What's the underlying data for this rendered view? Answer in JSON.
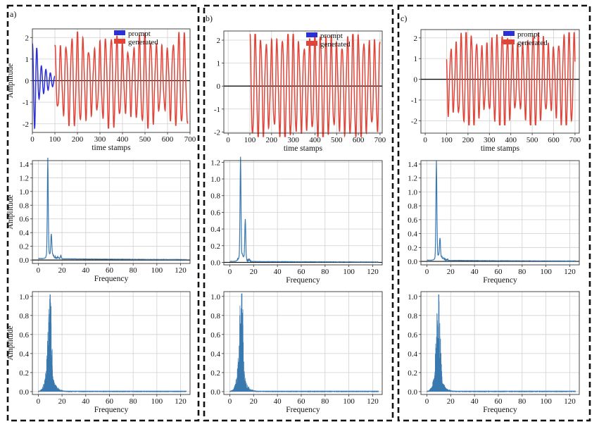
{
  "panels": [
    {
      "label": "a)"
    },
    {
      "label": "b)"
    },
    {
      "label": "c)"
    }
  ],
  "colors": {
    "prompt": "#2a2fd6",
    "generated": "#e0453a",
    "spectrum": "#3a78b0",
    "zero_line": "#111111",
    "grid": "#d0d0d0"
  },
  "chart_data": [
    {
      "panel": "a)",
      "type": "line",
      "row": 1,
      "xlabel": "time stamps",
      "ylabel": "Amplitude",
      "xlim": [
        0,
        700
      ],
      "ylim": [
        -2.4,
        2.4
      ],
      "xticks": [
        0,
        100,
        200,
        300,
        400,
        500,
        600,
        700
      ],
      "yticks": [
        -2,
        -1,
        0,
        1,
        2
      ],
      "grid": true,
      "legend": "top-right",
      "series": [
        {
          "name": "prompt",
          "x_range": [
            0,
            100
          ],
          "amplitude": [
            1.0,
            2.3,
            0.2
          ],
          "dominant_period": 20
        },
        {
          "name": "generated",
          "x_range": [
            100,
            690
          ],
          "amplitude": [
            1.4,
            2.1
          ],
          "dominant_period": 25
        }
      ]
    },
    {
      "panel": "a)",
      "type": "line",
      "row": 2,
      "xlabel": "Frequency",
      "ylabel": "Amplitude",
      "xlim": [
        -5,
        128
      ],
      "ylim": [
        -0.05,
        1.45
      ],
      "xticks": [
        0,
        20,
        40,
        60,
        80,
        100,
        120
      ],
      "yticks": [
        0.0,
        0.2,
        0.4,
        0.6,
        0.8,
        1.0,
        1.2,
        1.4
      ],
      "grid": true,
      "series": [
        {
          "peaks": [
            [
              8,
              1.4
            ],
            [
              11,
              0.3
            ],
            [
              19,
              0.05
            ]
          ],
          "baseline": 0.02
        }
      ]
    },
    {
      "panel": "a)",
      "type": "area",
      "row": 3,
      "xlabel": "Frequency",
      "ylabel": "Amplitude",
      "xlim": [
        -5,
        128
      ],
      "ylim": [
        -0.03,
        1.05
      ],
      "xticks": [
        0,
        20,
        40,
        60,
        80,
        100,
        120
      ],
      "yticks": [
        0.0,
        0.2,
        0.4,
        0.6,
        0.8,
        1.0
      ],
      "grid": true,
      "series": [
        {
          "peak": [
            10,
            1.02
          ],
          "baseline": 0.005
        }
      ]
    },
    {
      "panel": "b)",
      "type": "line",
      "row": 1,
      "xlabel": "time stamps",
      "ylabel": "",
      "xlim": [
        -20,
        710
      ],
      "ylim": [
        -2.05,
        2.4
      ],
      "xticks": [
        0,
        100,
        200,
        300,
        400,
        500,
        600,
        700
      ],
      "yticks": [
        -2,
        -1,
        0,
        1,
        2
      ],
      "grid": true,
      "legend": "top-right",
      "series": [
        {
          "name": "prompt",
          "x_range": [
            0,
            100
          ],
          "amplitude": [
            0.8,
            0.6
          ],
          "dominant_period": 20
        },
        {
          "name": "generated",
          "x_range": [
            100,
            700
          ],
          "amplitude": [
            1.8,
            2.3
          ],
          "dominant_period": 25
        }
      ]
    },
    {
      "panel": "b)",
      "type": "line",
      "row": 2,
      "xlabel": "Frequency",
      "ylabel": "",
      "xlim": [
        -5,
        128
      ],
      "ylim": [
        -0.03,
        1.22
      ],
      "xticks": [
        0,
        20,
        40,
        60,
        80,
        100,
        120
      ],
      "yticks": [
        0.0,
        0.2,
        0.4,
        0.6,
        0.8,
        1.0,
        1.2
      ],
      "grid": true,
      "series": [
        {
          "peaks": [
            [
              9,
              1.17
            ],
            [
              13,
              0.47
            ]
          ],
          "baseline": 0.01
        }
      ]
    },
    {
      "panel": "b)",
      "type": "area",
      "row": 3,
      "xlabel": "Frequency",
      "ylabel": "",
      "xlim": [
        -5,
        128
      ],
      "ylim": [
        -0.03,
        1.05
      ],
      "xticks": [
        0,
        20,
        40,
        60,
        80,
        100,
        120
      ],
      "yticks": [
        0.0,
        0.2,
        0.4,
        0.6,
        0.8,
        1.0
      ],
      "grid": true,
      "series": [
        {
          "peak": [
            10,
            1.03
          ],
          "baseline": 0.005
        }
      ]
    },
    {
      "panel": "c)",
      "type": "line",
      "row": 1,
      "xlabel": "time stamps",
      "ylabel": "",
      "xlim": [
        -20,
        720
      ],
      "ylim": [
        -2.6,
        2.4
      ],
      "xticks": [
        0,
        100,
        200,
        300,
        400,
        500,
        600,
        700
      ],
      "yticks": [
        -2,
        -1,
        0,
        1,
        2
      ],
      "grid": true,
      "legend": "top-right",
      "series": [
        {
          "name": "prompt",
          "x_range": [
            0,
            100
          ],
          "amplitude": [
            2.0,
            0.6
          ],
          "dominant_period": 18
        },
        {
          "name": "generated",
          "x_range": [
            100,
            700
          ],
          "amplitude": [
            1.5,
            2.3
          ],
          "dominant_period": 24
        }
      ]
    },
    {
      "panel": "c)",
      "type": "line",
      "row": 2,
      "xlabel": "Frequency",
      "ylabel": "",
      "xlim": [
        -5,
        128
      ],
      "ylim": [
        -0.05,
        1.45
      ],
      "xticks": [
        0,
        20,
        40,
        60,
        80,
        100,
        120
      ],
      "yticks": [
        0.0,
        0.2,
        0.4,
        0.6,
        0.8,
        1.0,
        1.2,
        1.4
      ],
      "grid": true,
      "series": [
        {
          "peaks": [
            [
              8,
              1.39
            ],
            [
              11,
              0.25
            ]
          ],
          "baseline": 0.015
        }
      ]
    },
    {
      "panel": "c)",
      "type": "area",
      "row": 3,
      "xlabel": "Frequency",
      "ylabel": "",
      "xlim": [
        -5,
        128
      ],
      "ylim": [
        -0.03,
        1.05
      ],
      "xticks": [
        0,
        20,
        40,
        60,
        80,
        100,
        120
      ],
      "yticks": [
        0.0,
        0.2,
        0.4,
        0.6,
        0.8,
        1.0
      ],
      "grid": true,
      "series": [
        {
          "peak": [
            10,
            1.02
          ],
          "baseline": 0.005
        }
      ]
    }
  ]
}
